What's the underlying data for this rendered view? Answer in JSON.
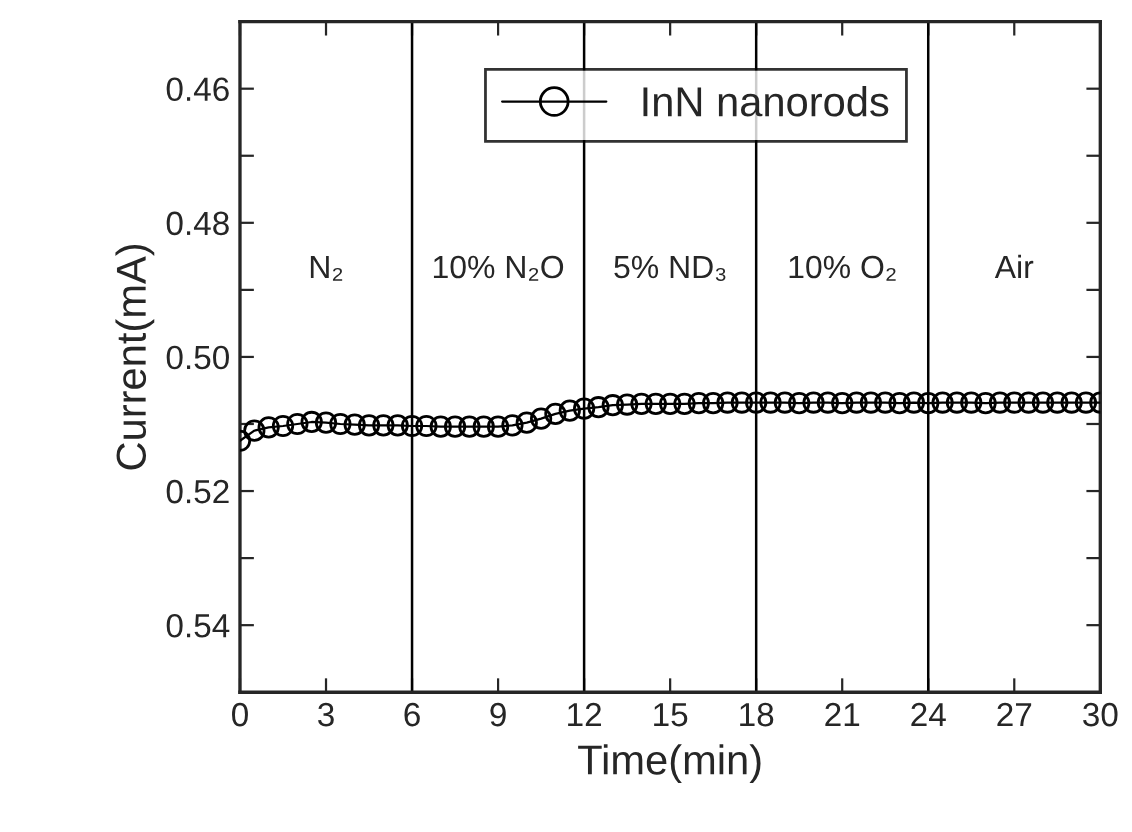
{
  "chart_data": {
    "type": "line",
    "xlabel": "Time(min)",
    "ylabel": "Current(mA)",
    "x": [
      0,
      0.5,
      1,
      1.5,
      2,
      2.5,
      3,
      3.5,
      4,
      4.5,
      5,
      5.5,
      6,
      6.5,
      7,
      7.5,
      8,
      8.5,
      9,
      9.5,
      10,
      10.5,
      11,
      11.5,
      12,
      12.5,
      13,
      13.5,
      14,
      14.5,
      15,
      15.5,
      16,
      16.5,
      17,
      17.5,
      18,
      18.5,
      19,
      19.5,
      20,
      20.5,
      21,
      21.5,
      22,
      22.5,
      23,
      23.5,
      24,
      24.5,
      25,
      25.5,
      26,
      26.5,
      27,
      27.5,
      28,
      28.5,
      29,
      29.5,
      30
    ],
    "series": [
      {
        "name": "InN nanorods",
        "color": "#000000",
        "values": [
          0.5125,
          0.511,
          0.5105,
          0.5103,
          0.51,
          0.5097,
          0.5098,
          0.51,
          0.5101,
          0.5102,
          0.5102,
          0.5102,
          0.5103,
          0.5103,
          0.5104,
          0.5104,
          0.5104,
          0.5104,
          0.5104,
          0.5102,
          0.5098,
          0.5092,
          0.5085,
          0.508,
          0.5077,
          0.5075,
          0.5072,
          0.5071,
          0.507,
          0.507,
          0.507,
          0.507,
          0.5069,
          0.5069,
          0.5068,
          0.5068,
          0.5068,
          0.5068,
          0.5068,
          0.5069,
          0.5068,
          0.5068,
          0.5069,
          0.5068,
          0.5068,
          0.5068,
          0.5069,
          0.5068,
          0.5069,
          0.5068,
          0.5068,
          0.5068,
          0.5069,
          0.5068,
          0.5068,
          0.5068,
          0.5068,
          0.5068,
          0.5068,
          0.5068,
          0.5068
        ]
      }
    ],
    "xlim": [
      0,
      30
    ],
    "xticks": [
      0,
      3,
      6,
      9,
      12,
      15,
      18,
      21,
      24,
      27,
      30
    ],
    "ylim": [
      0.55,
      0.45
    ],
    "yticks": [
      0.46,
      {
        "value": 0.47,
        "label": null
      },
      0.48,
      {
        "value": 0.49,
        "label": null
      },
      {
        "value": 0.5,
        "label": "0.50"
      },
      {
        "value": 0.51,
        "label": null
      },
      0.52,
      {
        "value": 0.53,
        "label": null
      },
      0.54
    ],
    "ref_lines": [
      {
        "axis": "x",
        "value": 6
      },
      {
        "axis": "x",
        "value": 12
      },
      {
        "axis": "x",
        "value": 18
      },
      {
        "axis": "x",
        "value": 24
      }
    ],
    "annotations": [
      "N₂",
      "10% N₂O",
      "5% ND₃",
      "10% O₂",
      "Air"
    ],
    "marker": "circle",
    "line_style": "solid",
    "grid": false,
    "legend": "top"
  }
}
